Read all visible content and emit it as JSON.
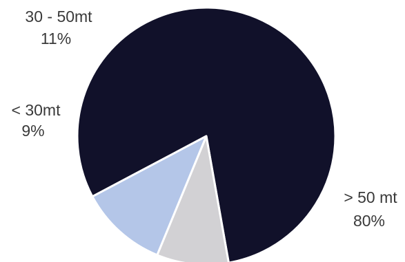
{
  "chart_data": {
    "type": "pie",
    "slices": [
      {
        "name": "> 50 mt",
        "value": 80,
        "value_label": "80%",
        "color": "#11112a"
      },
      {
        "name": "< 30mt",
        "value": 9,
        "value_label": "9%",
        "color": "#d2d1d4"
      },
      {
        "name": "30 - 50mt",
        "value": 11,
        "value_label": "11%",
        "color": "#b4c6e8"
      }
    ],
    "legend": "none",
    "labels": "outside, category name above percentage"
  }
}
